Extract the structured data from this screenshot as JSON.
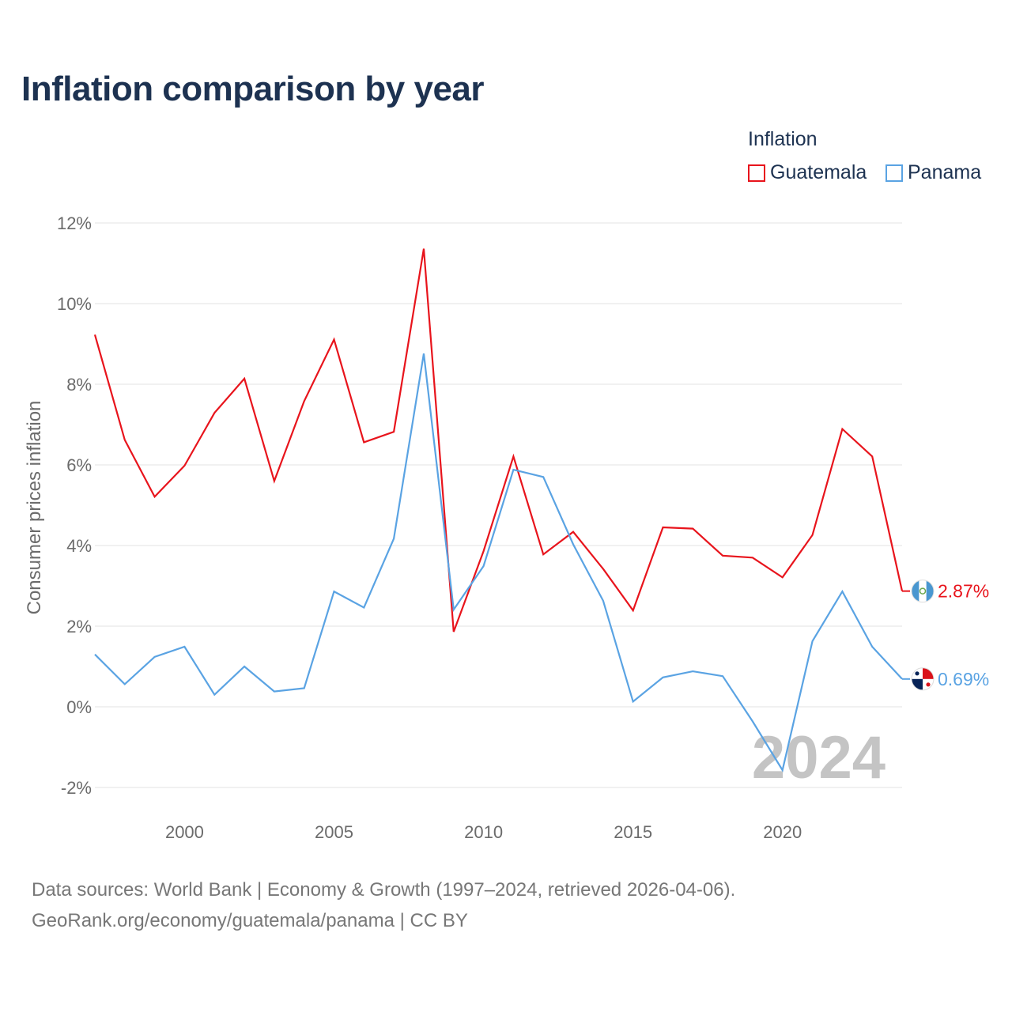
{
  "title": "Inflation comparison by year",
  "legend": {
    "title": "Inflation",
    "items": [
      {
        "name": "Guatemala",
        "color": "#e8141c"
      },
      {
        "name": "Panama",
        "color": "#5aa3e3"
      }
    ]
  },
  "chart_data": {
    "type": "line",
    "title": "Inflation comparison by year",
    "xlabel": "",
    "ylabel": "Consumer prices inflation",
    "ylim": [
      -2,
      12
    ],
    "xlim": [
      1997,
      2024
    ],
    "yticks": [
      -2,
      0,
      2,
      4,
      6,
      8,
      10,
      12
    ],
    "ytick_labels": [
      "-2%",
      "0%",
      "2%",
      "4%",
      "6%",
      "8%",
      "10%",
      "12%"
    ],
    "xticks": [
      2000,
      2005,
      2010,
      2015,
      2020
    ],
    "xtick_labels": [
      "2000",
      "2005",
      "2010",
      "2015",
      "2020"
    ],
    "grid": true,
    "legend_position": "top-right",
    "year_watermark": "2024",
    "x": [
      1997,
      1998,
      1999,
      2000,
      2001,
      2002,
      2003,
      2004,
      2005,
      2006,
      2007,
      2008,
      2009,
      2010,
      2011,
      2012,
      2013,
      2014,
      2015,
      2016,
      2017,
      2018,
      2019,
      2020,
      2021,
      2022,
      2023,
      2024
    ],
    "series": [
      {
        "name": "Guatemala",
        "color": "#e8141c",
        "end_label": "2.87%",
        "values": [
          9.23,
          6.62,
          5.21,
          5.98,
          7.29,
          8.14,
          5.6,
          7.58,
          9.11,
          6.56,
          6.82,
          11.36,
          1.86,
          3.86,
          6.21,
          3.78,
          4.34,
          3.42,
          2.39,
          4.45,
          4.42,
          3.75,
          3.7,
          3.21,
          4.26,
          6.89,
          6.21,
          2.87
        ]
      },
      {
        "name": "Panama",
        "color": "#5aa3e3",
        "end_label": "0.69%",
        "values": [
          1.3,
          0.56,
          1.24,
          1.49,
          0.3,
          1.0,
          0.38,
          0.46,
          2.86,
          2.46,
          4.17,
          8.76,
          2.41,
          3.49,
          5.88,
          5.7,
          4.03,
          2.63,
          0.13,
          0.73,
          0.88,
          0.76,
          -0.36,
          -1.57,
          1.63,
          2.86,
          1.49,
          0.69
        ]
      }
    ]
  },
  "source": {
    "line1": "Data sources: World Bank | Economy & Growth (1997–2024, retrieved 2026-04-06).",
    "line2": "GeoRank.org/economy/guatemala/panama | CC BY"
  }
}
